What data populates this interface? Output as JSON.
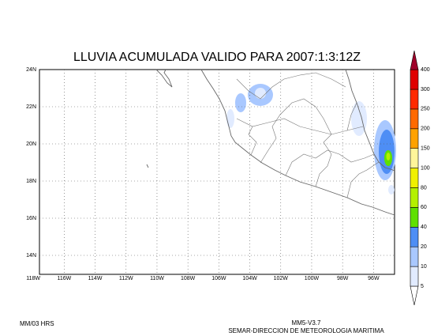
{
  "header": {
    "title": "LLUVIA ACUMULADA VALIDO PARA 2007:1:3:12Z"
  },
  "map": {
    "lat_labels": [
      "24N",
      "22N",
      "20N",
      "18N",
      "16N",
      "14N"
    ],
    "lon_labels": [
      "118W",
      "116W",
      "114W",
      "112W",
      "110W",
      "108W",
      "106W",
      "104W",
      "102W",
      "100W",
      "98W",
      "96W"
    ]
  },
  "colorbar": {
    "labels": [
      "5",
      "10",
      "20",
      "40",
      "60",
      "80",
      "100",
      "150",
      "200",
      "250",
      "300",
      "400"
    ],
    "colors": [
      "#ffffff",
      "#e1ebff",
      "#a9c8ff",
      "#4e8ef5",
      "#5fe000",
      "#b4f000",
      "#f0f000",
      "#fff59a",
      "#ffa200",
      "#ff6a00",
      "#ff2a00",
      "#e00000",
      "#a0002a"
    ]
  },
  "footer": {
    "left": "MM/03 HRS",
    "model": "MM5-V3.7",
    "source": "SEMAR-DIRECCION DE METEOROLOGIA MARITIMA"
  }
}
